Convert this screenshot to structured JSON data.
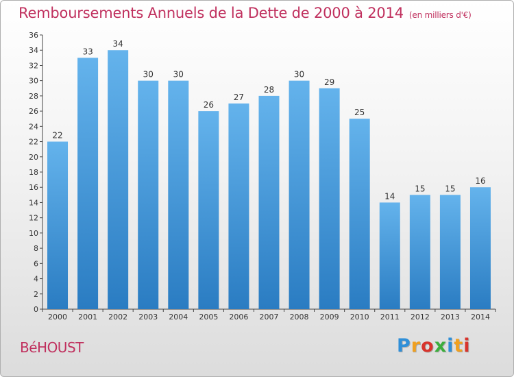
{
  "header": {
    "title": "Remboursements Annuels de la Dette de 2000 à 2014",
    "unit": "(en milliers d'€)"
  },
  "footer": {
    "commune": "BéHOUST",
    "logo_letters": [
      "P",
      "r",
      "o",
      "x",
      "i",
      "t",
      "i"
    ],
    "logo_colors": [
      "#2f8fd8",
      "#f0a020",
      "#d8342c",
      "#3cae3c",
      "#2f8fd8",
      "#f0a020",
      "#d8342c"
    ]
  },
  "colors": {
    "bar_top": "#64b3ec",
    "bar_bottom": "#2a7cc2",
    "title": "#c0305e"
  },
  "chart_data": {
    "type": "bar",
    "title": "Remboursements Annuels de la Dette de 2000 à 2014",
    "xlabel": "",
    "ylabel": "",
    "categories": [
      "2000",
      "2001",
      "2002",
      "2003",
      "2004",
      "2005",
      "2006",
      "2007",
      "2008",
      "2009",
      "2010",
      "2011",
      "2012",
      "2013",
      "2014"
    ],
    "values": [
      22,
      33,
      34,
      30,
      30,
      26,
      27,
      28,
      30,
      29,
      25,
      14,
      15,
      15,
      16
    ],
    "ylim": [
      0,
      36
    ],
    "ytick_step": 2,
    "grid": false,
    "data_labels": true
  }
}
